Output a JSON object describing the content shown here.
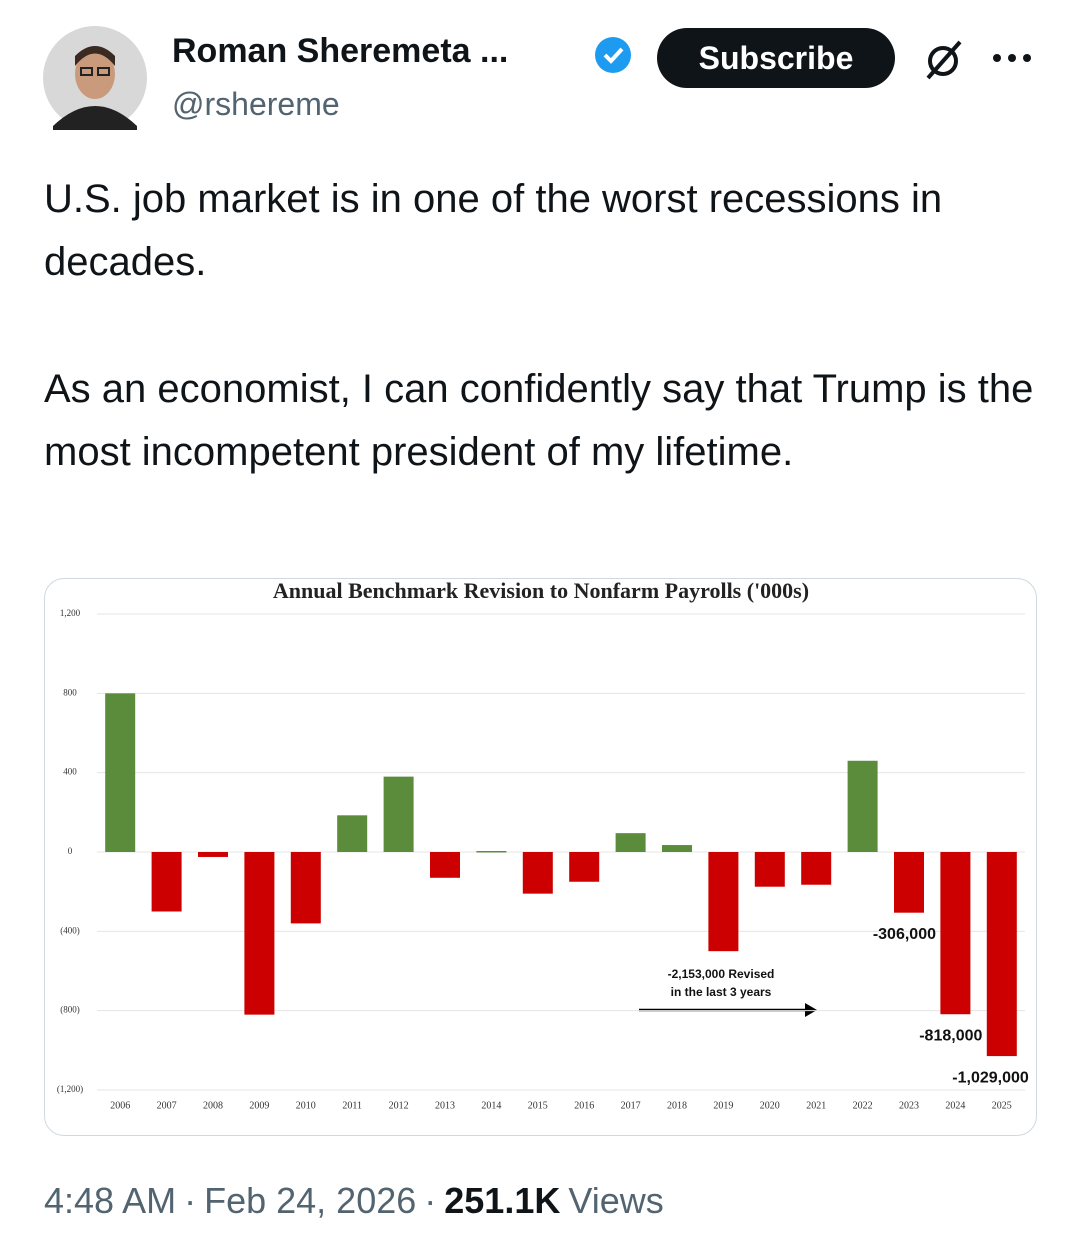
{
  "header": {
    "name": "Roman Sheremeta ...",
    "handle": "@rshereme",
    "subscribe": "Subscribe"
  },
  "tweet": {
    "paragraphs": [
      "U.S. job market is in one of the worst recessions in decades.",
      "As an economist, I can confidently say that Trump is the most incompetent president of my lifetime."
    ]
  },
  "chart_data": {
    "type": "bar",
    "title": "Annual Benchmark Revision to Nonfarm Payrolls ('000s)",
    "categories": [
      "2006",
      "2007",
      "2008",
      "2009",
      "2010",
      "2011",
      "2012",
      "2013",
      "2014",
      "2015",
      "2016",
      "2017",
      "2018",
      "2019",
      "2020",
      "2021",
      "2022",
      "2023",
      "2024",
      "2025"
    ],
    "values": [
      800,
      -300,
      -25,
      -820,
      -360,
      185,
      380,
      -130,
      5,
      -210,
      -150,
      95,
      35,
      -500,
      -175,
      -165,
      460,
      -306,
      -818,
      -1029
    ],
    "value_labels": [
      null,
      null,
      null,
      null,
      null,
      null,
      null,
      null,
      null,
      null,
      null,
      null,
      null,
      null,
      null,
      null,
      null,
      "-306,000",
      "-818,000",
      "-1,029,000"
    ],
    "positive_color": "#5b8c3b",
    "negative_color": "#cc0000",
    "ylim": [
      -1200,
      1200
    ],
    "yticks": [
      {
        "value": 1200,
        "label": "1,200"
      },
      800,
      400,
      0,
      {
        "value": -400,
        "label": "(400)"
      },
      {
        "value": -800,
        "label": "(800)"
      },
      {
        "value": -1200,
        "label": "(1,200)"
      }
    ],
    "grid": true,
    "annotation": [
      "-2,153,000 Revised",
      "in the last 3 years"
    ]
  },
  "footer": {
    "time": "4:48 AM",
    "separator": "·",
    "date": "Feb 24, 2026",
    "views_count": "251.1K",
    "views_label": "Views"
  }
}
